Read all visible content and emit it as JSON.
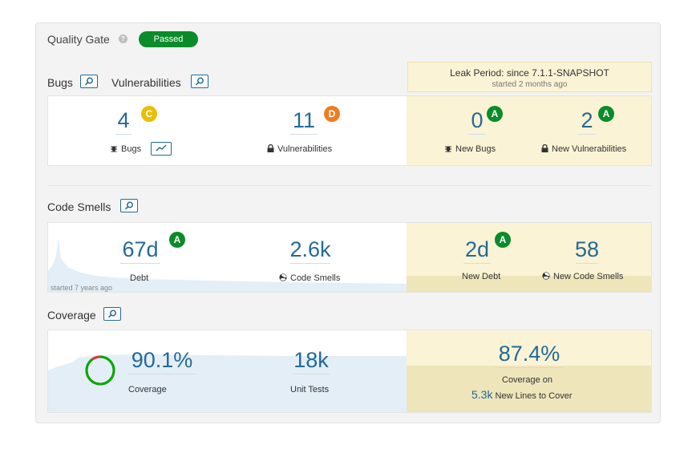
{
  "quality_gate": {
    "title": "Quality Gate",
    "status": "Passed",
    "help_icon": "help-icon",
    "status_color": "#0a8c2a"
  },
  "leak_period": {
    "title": "Leak Period: since 7.1.1-SNAPSHOT",
    "subtitle": "started 2 months ago"
  },
  "reliability": {
    "section_bugs": "Bugs",
    "section_vulns": "Vulnerabilities",
    "bugs": {
      "value": "4",
      "rating": "C",
      "label": "Bugs"
    },
    "vulnerabilities": {
      "value": "11",
      "rating": "D",
      "label": "Vulnerabilities"
    },
    "new_bugs": {
      "value": "0",
      "rating": "A",
      "label": "New Bugs"
    },
    "new_vulnerabilities": {
      "value": "2",
      "rating": "A",
      "label": "New Vulnerabilities"
    }
  },
  "maintainability": {
    "section": "Code Smells",
    "debt": {
      "value": "67d",
      "rating": "A",
      "label": "Debt"
    },
    "history_note": "started 7 years ago",
    "code_smells": {
      "value": "2.6k",
      "label": "Code Smells"
    },
    "new_debt": {
      "value": "2d",
      "rating": "A",
      "label": "New Debt"
    },
    "new_code_smells": {
      "value": "58",
      "label": "New Code Smells"
    }
  },
  "coverage": {
    "section": "Coverage",
    "coverage": {
      "value": "90.1%",
      "label": "Coverage",
      "fraction": 0.901
    },
    "unit_tests": {
      "value": "18k",
      "label": "Unit Tests"
    },
    "new_coverage": {
      "value": "87.4%",
      "label": "Coverage on"
    },
    "new_lines": {
      "value": "5.3k",
      "label": "New Lines to Cover"
    }
  },
  "colors": {
    "accent": "#236a97",
    "rating_a": "#0a8c2a",
    "rating_c": "#eabe06",
    "rating_d": "#ed7d20",
    "leak_bg": "#fbf3d5"
  }
}
